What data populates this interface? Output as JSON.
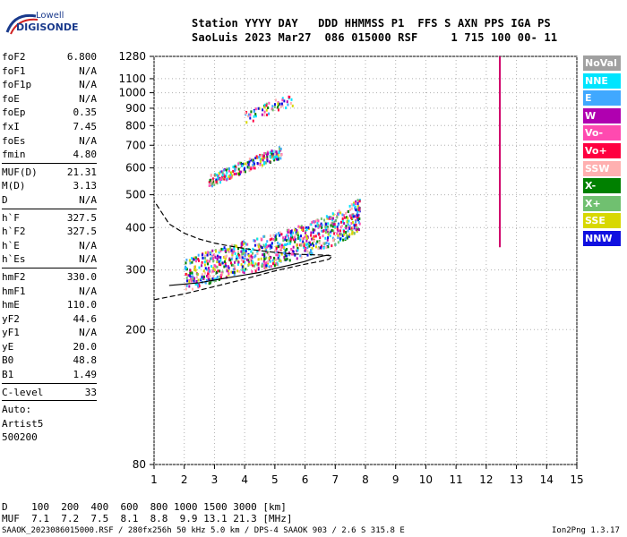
{
  "logo": {
    "brand": "Lowell",
    "name": "DIGISONDE"
  },
  "header": {
    "line1": "Station YYYY DAY   DDD HHMMSS P1  FFS S AXN PPS IGA PS",
    "line2": "SaoLuis 2023 Mar27  086 015000 RSF     1 715 100 00- 11"
  },
  "params": {
    "group1": [
      {
        "k": "foF2",
        "v": "6.800"
      },
      {
        "k": "foF1",
        "v": "N/A"
      },
      {
        "k": "foF1p",
        "v": "N/A"
      },
      {
        "k": "foE",
        "v": "N/A"
      },
      {
        "k": "foEp",
        "v": "0.35"
      },
      {
        "k": "fxI",
        "v": "7.45"
      },
      {
        "k": "foEs",
        "v": "N/A"
      },
      {
        "k": "fmin",
        "v": "4.80"
      }
    ],
    "group2": [
      {
        "k": "MUF(D)",
        "v": "21.31"
      },
      {
        "k": "M(D)",
        "v": "3.13"
      },
      {
        "k": "D",
        "v": "N/A"
      }
    ],
    "group3": [
      {
        "k": "h`F",
        "v": "327.5"
      },
      {
        "k": "h`F2",
        "v": "327.5"
      },
      {
        "k": "h`E",
        "v": "N/A"
      },
      {
        "k": "h`Es",
        "v": "N/A"
      }
    ],
    "group4": [
      {
        "k": "hmF2",
        "v": "330.0"
      },
      {
        "k": "hmF1",
        "v": "N/A"
      },
      {
        "k": "hmE",
        "v": "110.0"
      },
      {
        "k": "yF2",
        "v": "44.6"
      },
      {
        "k": "yF1",
        "v": "N/A"
      },
      {
        "k": "yE",
        "v": "20.0"
      },
      {
        "k": "B0",
        "v": "48.8"
      },
      {
        "k": "B1",
        "v": "1.49"
      }
    ],
    "group5": [
      {
        "k": "C-level",
        "v": "33"
      }
    ],
    "autoscale": [
      "Auto:",
      "Artist5",
      "500200"
    ]
  },
  "footer": {
    "d_line": "D    100  200  400  600  800 1000 1500 3000 [km]",
    "muf_line": "MUF  7.1  7.2  7.5  8.1  8.8  9.9 13.1 21.3 [MHz]",
    "file_line": "SAAOK_2023086015000.RSF / 280fx256h 50 kHz 5.0 km / DPS-4 SAAOK 903 / 2.6 S 315.8 E",
    "version": "Ion2Png 1.3.17"
  },
  "legend": [
    {
      "label": "NoVal",
      "color": "#a0a0a0"
    },
    {
      "label": "NNE",
      "color": "#00e5ff"
    },
    {
      "label": "E",
      "color": "#40a8ff"
    },
    {
      "label": "W",
      "color": "#b000b0"
    },
    {
      "label": "Vo-",
      "color": "#ff4ab0"
    },
    {
      "label": "Vo+",
      "color": "#ff0040"
    },
    {
      "label": "SSW",
      "color": "#ffb0b0"
    },
    {
      "label": "X-",
      "color": "#008000"
    },
    {
      "label": "X+",
      "color": "#70c070"
    },
    {
      "label": "SSE",
      "color": "#d8d800"
    },
    {
      "label": "NNW",
      "color": "#1010e0"
    }
  ],
  "chart_data": {
    "type": "scatter",
    "x_ticks": [
      1,
      2,
      3,
      4,
      5,
      6,
      7,
      8,
      9,
      10,
      11,
      12,
      13,
      14,
      15
    ],
    "y_ticks": [
      80,
      200,
      300,
      400,
      500,
      600,
      700,
      800,
      900,
      1000,
      1100,
      1280
    ],
    "xlim": [
      1,
      15
    ],
    "ylim": [
      80,
      1280
    ],
    "y_scale": "log",
    "grid": "dotted",
    "legend_position": "right",
    "series": [
      {
        "type": "trace",
        "x": [
          1.5,
          2.5,
          3,
          3.5,
          4,
          4.5,
          5,
          5.5,
          6,
          6.3,
          6.6,
          6.8
        ],
        "values": [
          270,
          275,
          280,
          285,
          290,
          295,
          303,
          310,
          318,
          325,
          330,
          332
        ]
      },
      {
        "type": "profile",
        "x": [
          1,
          2,
          3,
          4,
          4.5,
          5,
          5.5,
          6,
          6.5,
          6.8,
          6.9,
          6.6,
          6.0,
          5.5,
          5.0,
          4.5,
          4.0,
          3.5,
          3.0,
          2.5,
          2.0,
          1.5,
          1.0
        ],
        "values": [
          245,
          255,
          268,
          282,
          290,
          298,
          305,
          312,
          318,
          323,
          330,
          332,
          333,
          335,
          338,
          342,
          347,
          353,
          360,
          370,
          385,
          410,
          480
        ]
      },
      {
        "type": "reflection",
        "x": [
          2.0,
          2.5,
          3.0,
          3.5,
          4.0,
          4.5,
          5.0,
          5.5,
          6.0,
          6.5,
          7.0,
          7.5,
          7.8
        ],
        "values": [
          275,
          285,
          295,
          305,
          312,
          320,
          330,
          340,
          350,
          365,
          380,
          400,
          420
        ]
      },
      {
        "type": "reflection",
        "x": [
          2.8,
          3.2,
          3.6,
          4.0,
          4.4,
          4.8,
          5.2
        ],
        "values": [
          540,
          560,
          580,
          600,
          620,
          640,
          660
        ]
      },
      {
        "type": "reflection",
        "x": [
          4.0,
          4.4,
          4.8,
          5.2,
          5.6
        ],
        "values": [
          830,
          860,
          890,
          920,
          940
        ]
      }
    ],
    "vertical_lines": [
      {
        "x": 12.45,
        "from": 350,
        "to": 1280
      }
    ]
  }
}
